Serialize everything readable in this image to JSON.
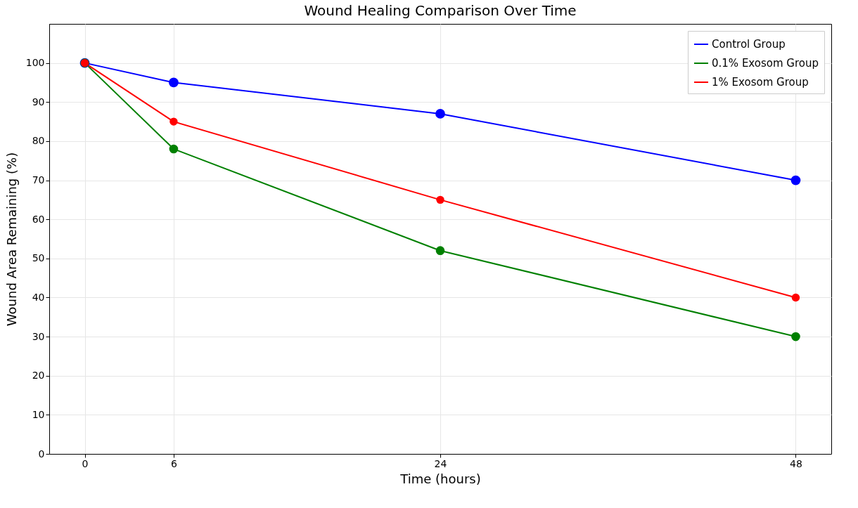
{
  "chart_data": {
    "type": "line",
    "title": "Wound Healing Comparison Over Time",
    "xlabel": "Time (hours)",
    "ylabel": "Wound Area Remaining (%)",
    "x": [
      0,
      6,
      24,
      48
    ],
    "series": [
      {
        "name": "Control Group",
        "color": "#0000ff",
        "values": [
          100,
          95,
          87,
          70
        ]
      },
      {
        "name": "0.1% Exosom Group",
        "color": "#008000",
        "values": [
          100,
          78,
          52,
          30
        ]
      },
      {
        "name": "1% Exosom Group",
        "color": "#ff0000",
        "values": [
          100,
          85,
          65,
          40
        ]
      }
    ],
    "xlim": [
      -2.4,
      50.4
    ],
    "xticks": [
      0,
      6,
      24,
      48
    ],
    "ylim": [
      0,
      110
    ],
    "yticks": [
      0,
      10,
      20,
      30,
      40,
      50,
      60,
      70,
      80,
      90,
      100
    ],
    "grid": true,
    "legend": "top right",
    "marker": "circle",
    "line_style": "solid"
  }
}
